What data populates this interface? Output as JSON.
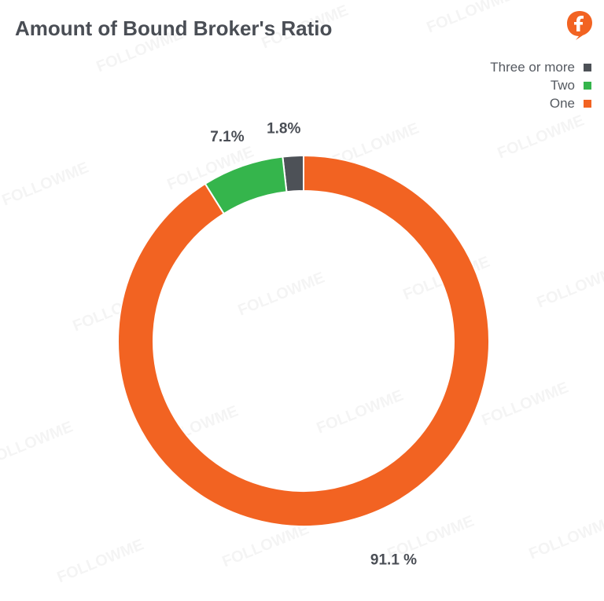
{
  "chart_data": {
    "type": "pie",
    "title": "Amount of Bound Broker's Ratio",
    "categories": [
      "Three or more",
      "Two",
      "One"
    ],
    "values": [
      1.8,
      7.1,
      91.1
    ],
    "value_labels": [
      "1.8%",
      "7.1%",
      "91.1 %"
    ],
    "colors": [
      "#4d5157",
      "#35b54c",
      "#f26322"
    ],
    "legend": "top-right",
    "donut": true
  },
  "watermark": "FOLLOWME",
  "colors": {
    "title": "#4a4e55",
    "label": "#4a4e55",
    "brand": "#f26322"
  }
}
